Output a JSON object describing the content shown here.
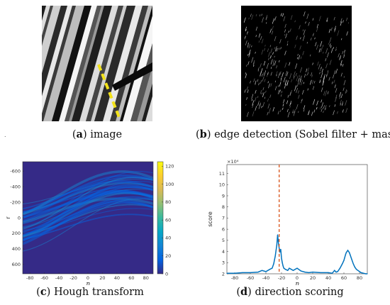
{
  "panels": {
    "a": {
      "letter": "a",
      "caption": "image"
    },
    "b": {
      "letter": "b",
      "caption": "edge detection (Sobel filter + mask)"
    },
    "c": {
      "letter": "c",
      "caption": "Hough transform"
    },
    "d": {
      "letter": "d",
      "caption": "direction scoring"
    }
  },
  "stray_mark": ".",
  "chart_data": [
    {
      "type": "heatmap",
      "id": "hough",
      "xlabel": "η",
      "ylabel": "r",
      "xticks": [
        -80,
        -60,
        -40,
        -20,
        0,
        20,
        40,
        60,
        80
      ],
      "yticks": [
        -600,
        -400,
        -200,
        0,
        200,
        400,
        600
      ],
      "xlim": [
        -90,
        90
      ],
      "ylim": [
        -720,
        720
      ],
      "colorbar_ticks": [
        0,
        20,
        40,
        60,
        80,
        100,
        120
      ],
      "colorbar_range": [
        0,
        125
      ],
      "colormap": [
        "#352a87",
        "#0363e1",
        "#1485d4",
        "#06a7c6",
        "#38b99e",
        "#92bf73",
        "#d9ba56",
        "#fcce2e",
        "#f9fb0e"
      ]
    },
    {
      "type": "line",
      "id": "direction-scoring",
      "xlabel": "η",
      "ylabel": "score",
      "exponent_label": "×10⁴",
      "xticks": [
        -80,
        -60,
        -40,
        -20,
        0,
        20,
        40,
        60,
        80
      ],
      "yticks": [
        2,
        3,
        4,
        5,
        6,
        7,
        8,
        9,
        10,
        11
      ],
      "xlim": [
        -90,
        90
      ],
      "ylim": [
        2,
        11.8
      ],
      "series": [
        {
          "color": "#0072bd",
          "x": [
            -90,
            -80,
            -70,
            -60,
            -50,
            -45,
            -40,
            -35,
            -32,
            -30,
            -28,
            -26,
            -25,
            -24,
            -23,
            -22,
            -21,
            -20,
            -19,
            -18,
            -17,
            -15,
            -12,
            -10,
            -5,
            0,
            5,
            10,
            15,
            20,
            30,
            40,
            45,
            48,
            50,
            52,
            55,
            58,
            60,
            62,
            63,
            64,
            65,
            66,
            67,
            68,
            70,
            72,
            74,
            76,
            78,
            80,
            82,
            85,
            88,
            90
          ],
          "y": [
            2.05,
            2.05,
            2.1,
            2.1,
            2.15,
            2.3,
            2.2,
            2.4,
            2.5,
            2.9,
            3.6,
            4.6,
            5.5,
            4.8,
            4.3,
            4.0,
            4.2,
            3.4,
            3.0,
            2.7,
            2.5,
            2.4,
            2.3,
            2.5,
            2.3,
            2.5,
            2.25,
            2.15,
            2.1,
            2.15,
            2.1,
            2.1,
            2.05,
            2.3,
            2.15,
            2.2,
            2.5,
            2.9,
            3.2,
            3.7,
            3.9,
            4.0,
            4.1,
            4.0,
            3.9,
            3.7,
            3.3,
            2.9,
            2.6,
            2.4,
            2.3,
            2.2,
            2.1,
            2.05,
            2.0,
            2.0
          ]
        }
      ],
      "marker_line": {
        "x": -23,
        "color": "#d95319",
        "style": "dashed"
      }
    }
  ]
}
